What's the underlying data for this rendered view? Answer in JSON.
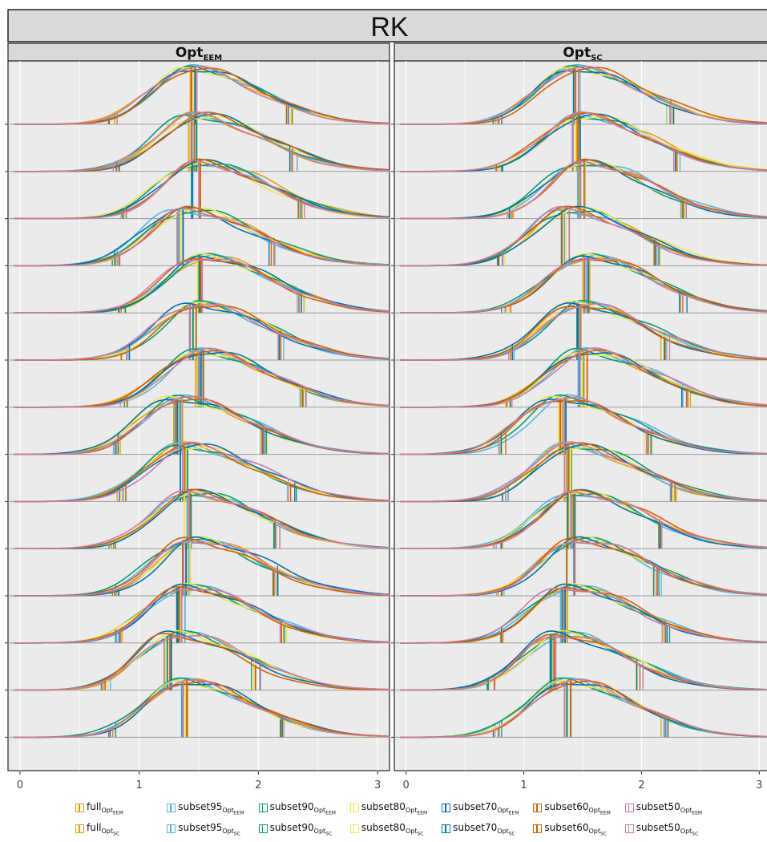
{
  "chart_data": {
    "type": "ridgeline-density",
    "title": "RK",
    "panels": [
      {
        "name": "Opt",
        "sub": "EEM"
      },
      {
        "name": "Opt",
        "sub": "SC"
      }
    ],
    "xlim": [
      -0.1,
      3.1
    ],
    "xticks": [
      0,
      1,
      2,
      3
    ],
    "ridges": 14,
    "grid": true,
    "legend": "bottom",
    "series": [
      {
        "base": "full",
        "sub": "EEM",
        "color": "#E69F00"
      },
      {
        "base": "subset95",
        "sub": "EEM",
        "color": "#56B4E9"
      },
      {
        "base": "subset90",
        "sub": "EEM",
        "color": "#009E73"
      },
      {
        "base": "subset80",
        "sub": "EEM",
        "color": "#F0E442"
      },
      {
        "base": "subset70",
        "sub": "EEM",
        "color": "#0072B2"
      },
      {
        "base": "subset60",
        "sub": "EEM",
        "color": "#D55E00"
      },
      {
        "base": "subset50",
        "sub": "EEM",
        "color": "#CC79A7"
      },
      {
        "base": "full",
        "sub": "SC",
        "color": "#E69F00"
      },
      {
        "base": "subset95",
        "sub": "SC",
        "color": "#56B4E9"
      },
      {
        "base": "subset90",
        "sub": "SC",
        "color": "#009E73"
      },
      {
        "base": "subset80",
        "sub": "SC",
        "color": "#F0E442"
      },
      {
        "base": "subset70",
        "sub": "SC",
        "color": "#0072B2"
      },
      {
        "base": "subset60",
        "sub": "SC",
        "color": "#D55E00"
      },
      {
        "base": "subset50",
        "sub": "SC",
        "color": "#CC79A7"
      }
    ],
    "ridge_modes": [
      1.45,
      1.48,
      1.5,
      1.38,
      1.55,
      1.48,
      1.52,
      1.32,
      1.4,
      1.45,
      1.45,
      1.38,
      1.3,
      1.38
    ],
    "ridge_quantiles": [
      [
        0.78,
        1.45,
        2.25
      ],
      [
        0.8,
        1.45,
        2.3
      ],
      [
        0.88,
        1.48,
        2.35
      ],
      [
        0.8,
        1.35,
        2.12
      ],
      [
        0.85,
        1.52,
        2.35
      ],
      [
        0.88,
        1.46,
        2.2
      ],
      [
        0.88,
        1.5,
        2.38
      ],
      [
        0.82,
        1.33,
        2.05
      ],
      [
        0.85,
        1.38,
        2.28
      ],
      [
        0.78,
        1.4,
        2.15
      ],
      [
        0.8,
        1.4,
        2.13
      ],
      [
        0.82,
        1.35,
        2.2
      ],
      [
        0.72,
        1.25,
        1.98
      ],
      [
        0.78,
        1.37,
        2.2
      ]
    ]
  }
}
